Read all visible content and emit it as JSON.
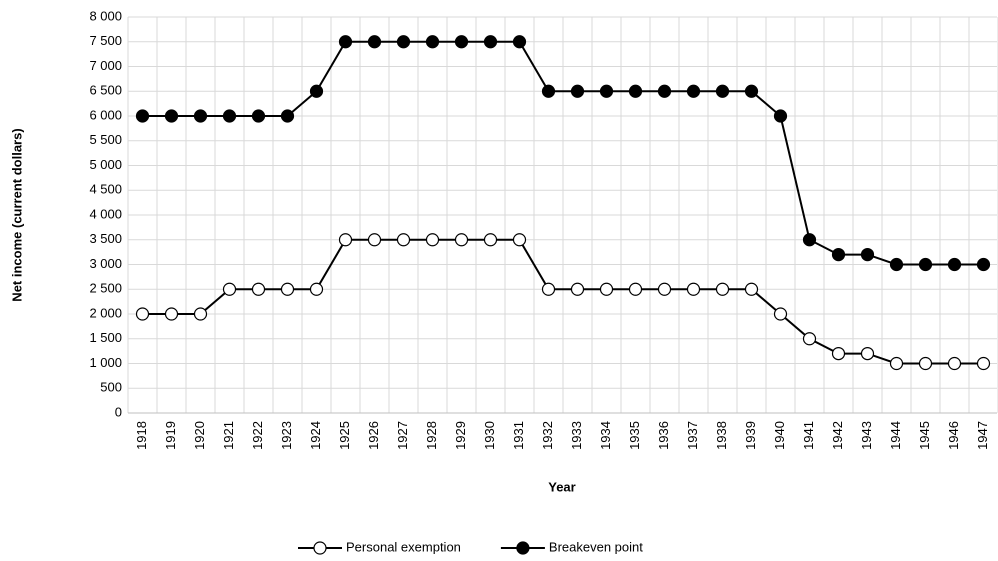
{
  "chart_data": {
    "type": "line",
    "x_label": "Year",
    "y_label": "Net income (current dollars)",
    "categories": [
      "1918",
      "1919",
      "1920",
      "1921",
      "1922",
      "1923",
      "1924",
      "1925",
      "1926",
      "1927",
      "1928",
      "1929",
      "1930",
      "1931",
      "1932",
      "1933",
      "1934",
      "1935",
      "1936",
      "1937",
      "1938",
      "1939",
      "1940",
      "1941",
      "1942",
      "1943",
      "1944",
      "1945",
      "1946",
      "1947"
    ],
    "series": [
      {
        "name": "Personal exemption",
        "color": "#000000",
        "marker_fill": "#ffffff",
        "values": [
          2000,
          2000,
          2000,
          2500,
          2500,
          2500,
          2500,
          3500,
          3500,
          3500,
          3500,
          3500,
          3500,
          3500,
          2500,
          2500,
          2500,
          2500,
          2500,
          2500,
          2500,
          2500,
          2000,
          1500,
          1200,
          1200,
          1000,
          1000,
          1000,
          1000
        ]
      },
      {
        "name": "Breakeven point",
        "color": "#000000",
        "marker_fill": "#000000",
        "values": [
          6000,
          6000,
          6000,
          6000,
          6000,
          6000,
          6500,
          7500,
          7500,
          7500,
          7500,
          7500,
          7500,
          7500,
          6500,
          6500,
          6500,
          6500,
          6500,
          6500,
          6500,
          6500,
          6000,
          3500,
          3200,
          3200,
          3000,
          3000,
          3000,
          3000
        ]
      }
    ],
    "ylim": [
      0,
      8000
    ],
    "yticks": [
      0,
      500,
      {
        "value": 1000,
        "label": "1 000"
      },
      {
        "value": 1500,
        "label": "1 500"
      },
      {
        "value": 2000,
        "label": "2 000"
      },
      {
        "value": 2500,
        "label": "2 500"
      },
      {
        "value": 3000,
        "label": "3 000"
      },
      {
        "value": 3500,
        "label": "3 500"
      },
      {
        "value": 4000,
        "label": "4 000"
      },
      {
        "value": 4500,
        "label": "4 500"
      },
      {
        "value": 5000,
        "label": "5 000"
      },
      {
        "value": 5500,
        "label": "5 500"
      },
      {
        "value": 6000,
        "label": "6 000"
      },
      {
        "value": 6500,
        "label": "6 500"
      },
      {
        "value": 7000,
        "label": "7 000"
      },
      {
        "value": 7500,
        "label": "7 500"
      },
      {
        "value": 8000,
        "label": "8 000"
      }
    ],
    "grid": true,
    "legend": "bottom"
  }
}
